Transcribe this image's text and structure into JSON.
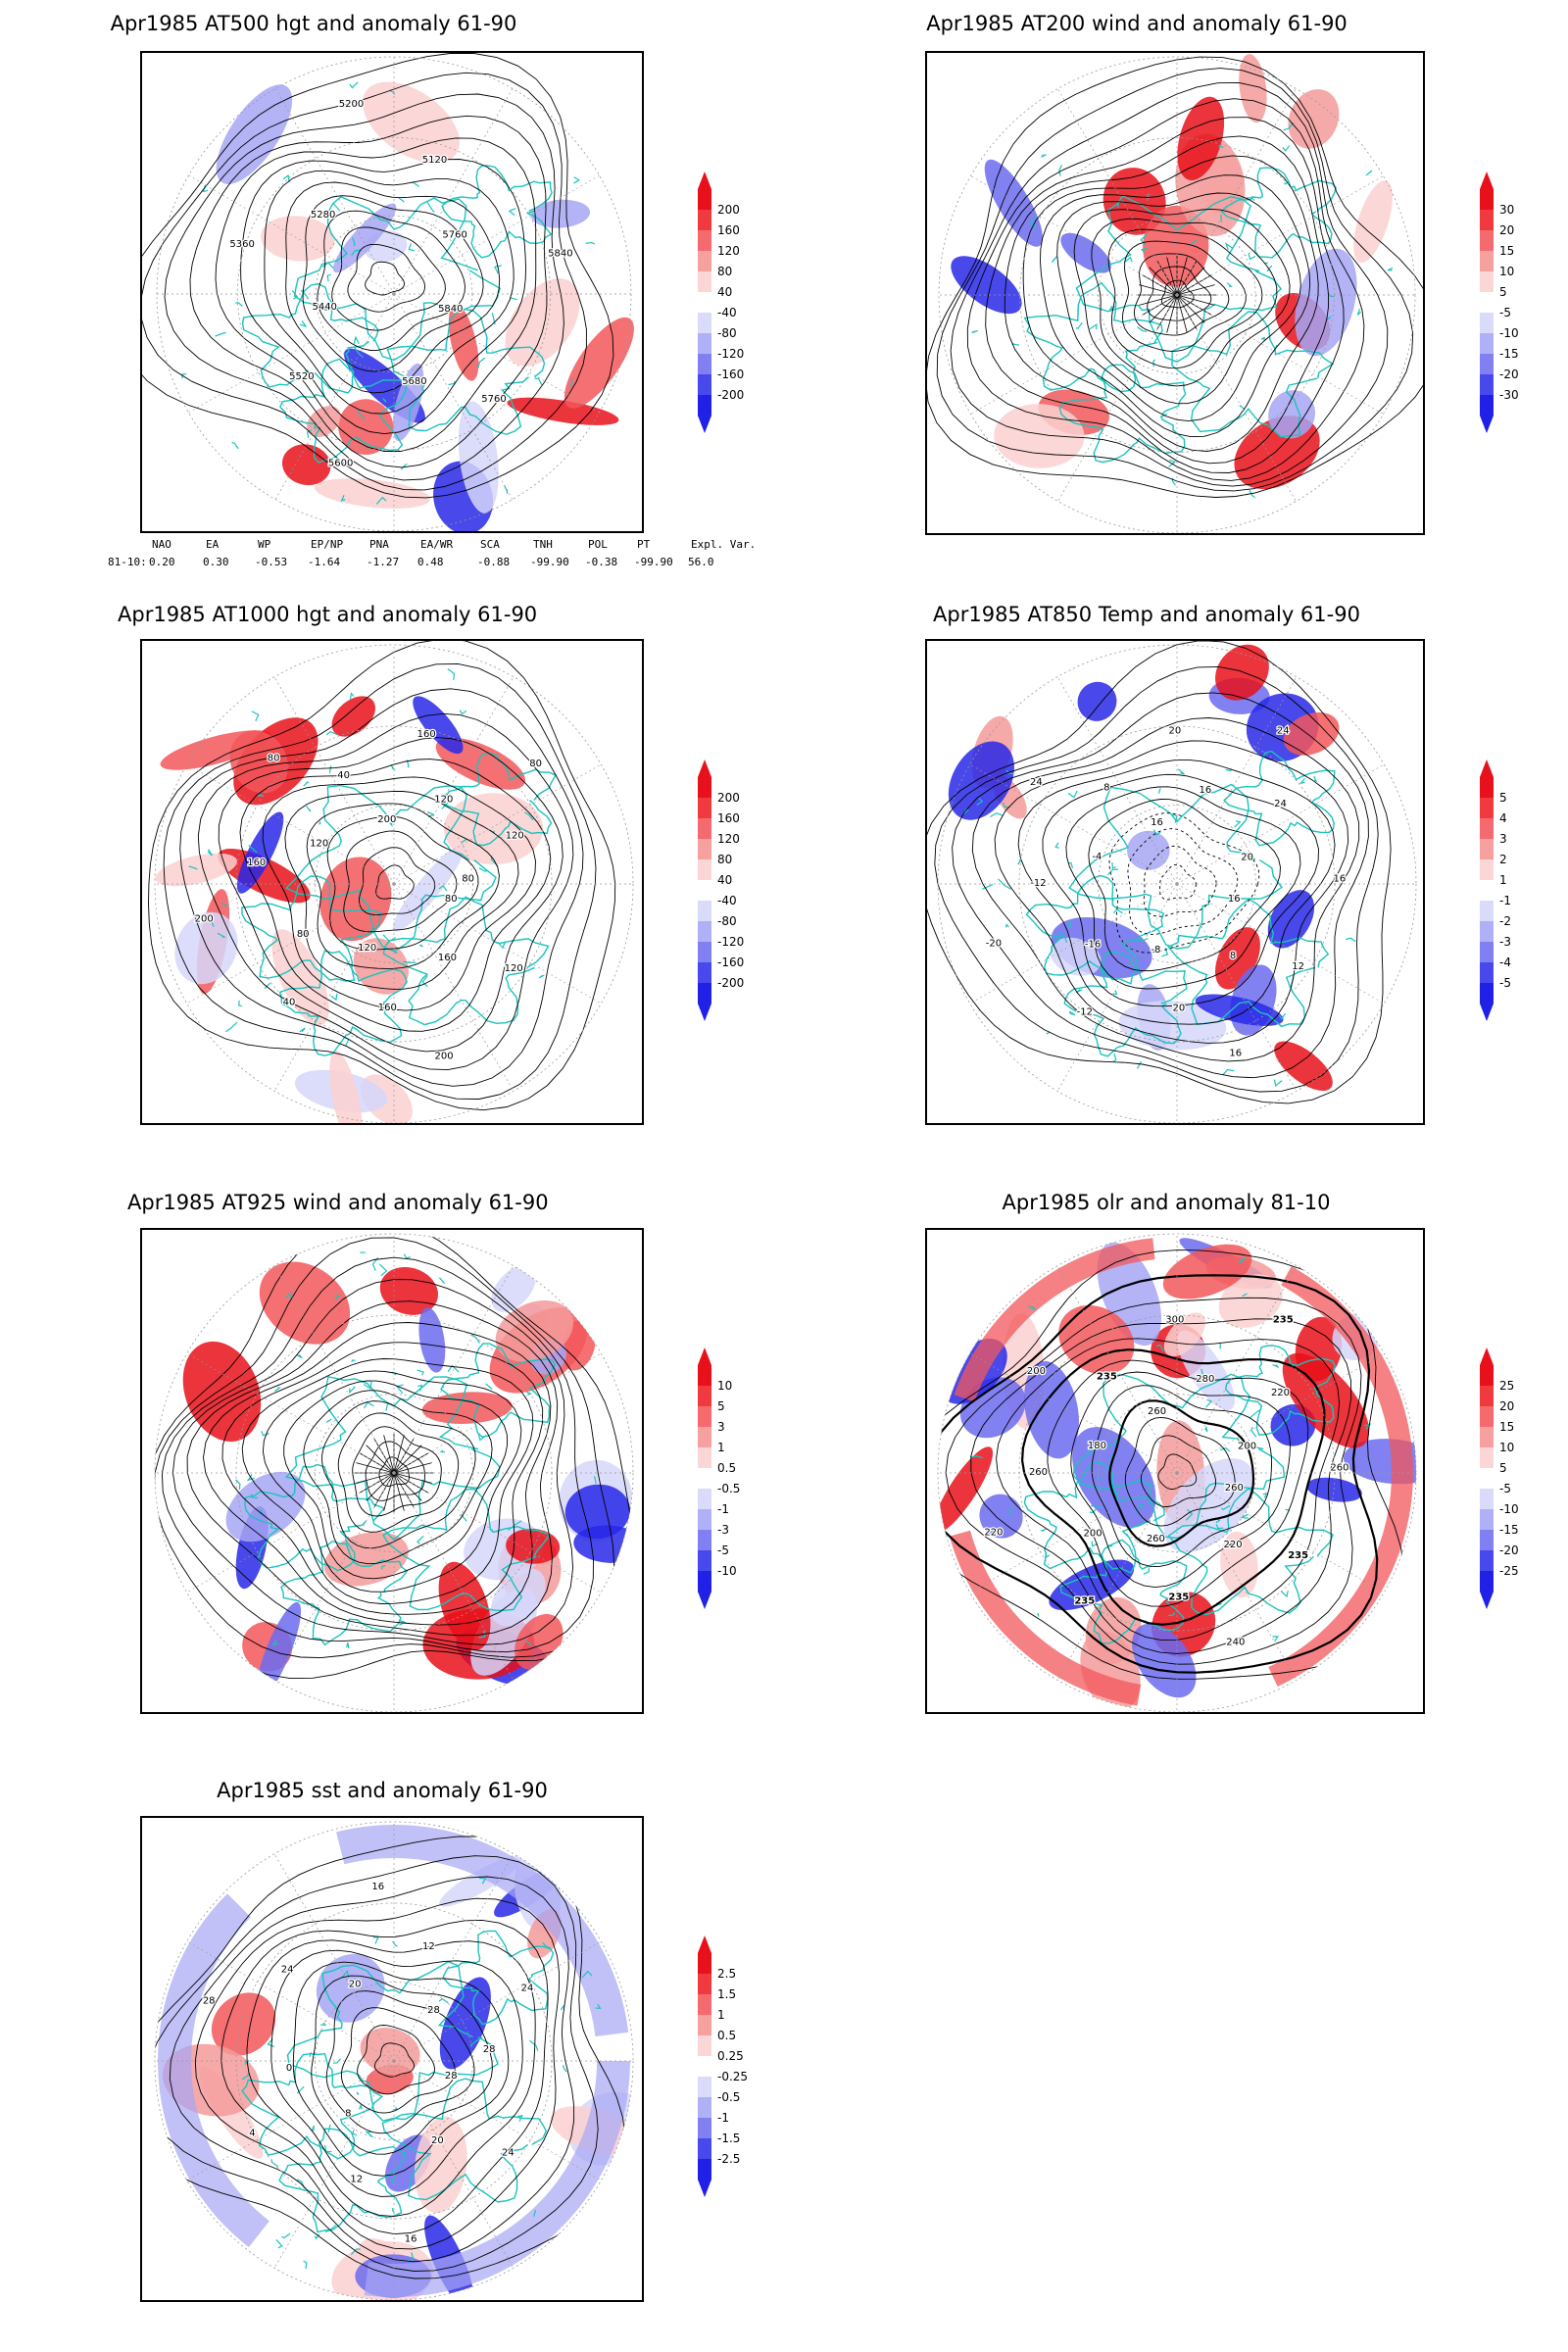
{
  "chart_data": [
    {
      "type": "heatmap",
      "title": "Apr1985 AT500 hgt and anomaly 61-90",
      "projection": "north-polar-stereographic",
      "contour_labels": [
        "5840",
        "5760",
        "5680",
        "5600",
        "5520",
        "5440",
        "5360",
        "5280",
        "5200",
        "5120",
        "5760",
        "5840"
      ],
      "colorbar": {
        "labels": [
          "200",
          "160",
          "120",
          "80",
          "40",
          "-40",
          "-80",
          "-120",
          "-160",
          "-200"
        ]
      },
      "index_table": {
        "headers": [
          "NAO",
          "EA",
          "WP",
          "EP/NP",
          "PNA",
          "EA/WR",
          "SCA",
          "TNH",
          "POL",
          "PT",
          "Expl. Var."
        ],
        "row_label": "81-10:",
        "values": [
          "0.20",
          "0.30",
          "-0.53",
          "-1.64",
          "-1.27",
          "0.48",
          "-0.88",
          "-99.90",
          "-0.38",
          "-99.90",
          "56.0"
        ]
      }
    },
    {
      "type": "heatmap",
      "title": "Apr1985 AT200 wind and anomaly 61-90",
      "projection": "north-polar-stereographic",
      "colorbar": {
        "labels": [
          "30",
          "20",
          "15",
          "10",
          "5",
          "-5",
          "-10",
          "-15",
          "-20",
          "-30"
        ]
      }
    },
    {
      "type": "heatmap",
      "title": "Apr1985 AT1000 hgt and anomaly 61-90",
      "projection": "north-polar-stereographic",
      "contour_labels": [
        "80",
        "120",
        "160",
        "200",
        "160",
        "120",
        "40",
        "80",
        "200",
        "160",
        "120",
        "80",
        "40",
        "200",
        "160",
        "120",
        "80",
        "120",
        "80"
      ],
      "colorbar": {
        "labels": [
          "200",
          "160",
          "120",
          "80",
          "40",
          "-40",
          "-80",
          "-120",
          "-160",
          "-200"
        ]
      }
    },
    {
      "type": "heatmap",
      "title": "Apr1985 AT850 Temp and anomaly 61-90",
      "projection": "north-polar-stereographic",
      "contour_labels": [
        "16",
        "12",
        "8",
        "16",
        "20",
        "-8",
        "-12",
        "-16",
        "-20",
        "-12",
        "-4",
        "24",
        "8",
        "16",
        "20",
        "16",
        "24",
        "24",
        "20",
        "16"
      ],
      "colorbar": {
        "labels": [
          "5",
          "4",
          "3",
          "2",
          "1",
          "-1",
          "-2",
          "-3",
          "-4",
          "-5"
        ]
      }
    },
    {
      "type": "heatmap",
      "title": "Apr1985 AT925 wind and anomaly 61-90",
      "projection": "north-polar-stereographic",
      "colorbar": {
        "labels": [
          "10",
          "5",
          "3",
          "1",
          "0.5",
          "-0.5",
          "-1",
          "-3",
          "-5",
          "-10"
        ]
      }
    },
    {
      "type": "heatmap",
      "title": "Apr1985 olr and anomaly 81-10",
      "projection": "north-polar-stereographic",
      "contour_labels": [
        "260",
        "235",
        "220",
        "240",
        "235",
        "260",
        "235",
        "200",
        "220",
        "260",
        "180",
        "200",
        "235",
        "260",
        "300",
        "280",
        "235",
        "220",
        "200",
        "260"
      ],
      "colorbar": {
        "labels": [
          "25",
          "20",
          "15",
          "10",
          "5",
          "-5",
          "-10",
          "-15",
          "-20",
          "-25"
        ]
      }
    },
    {
      "type": "heatmap",
      "title": "Apr1985 sst and anomaly 61-90",
      "projection": "north-polar-stereographic",
      "contour_labels": [
        "28",
        "24",
        "20",
        "16",
        "12",
        "8",
        "4",
        "0",
        "28",
        "24",
        "20",
        "16",
        "12",
        "28",
        "24",
        "28"
      ],
      "colorbar": {
        "labels": [
          "2.5",
          "1.5",
          "1",
          "0.5",
          "0.25",
          "-0.25",
          "-0.5",
          "-1",
          "-1.5",
          "-2.5"
        ]
      }
    }
  ],
  "colors": {
    "red_strong": "#e8101a",
    "red_mid": "#f2575b",
    "red_light": "#f59a9a",
    "red_pale": "#fbd0d0",
    "blue_pale": "#d6d6fa",
    "blue_light": "#a6a6f5",
    "blue_mid": "#6b6bf0",
    "blue_strong": "#2828e8",
    "coast": "#19c4be",
    "contour": "#000000",
    "grid": "#999999"
  }
}
